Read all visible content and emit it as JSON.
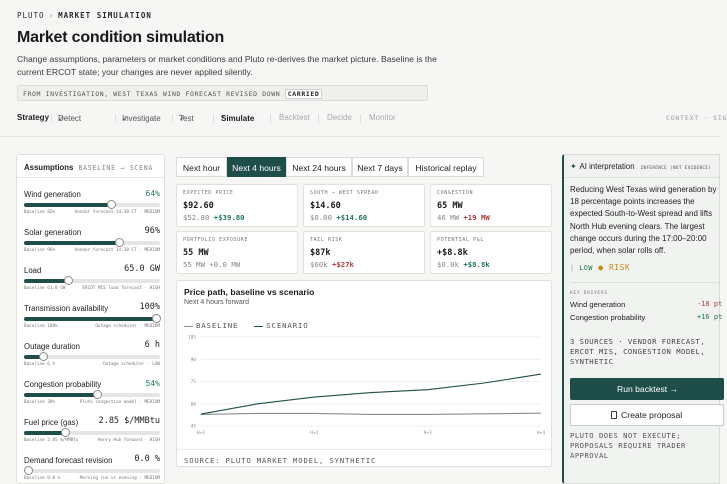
{
  "breadcrumb": {
    "root": "PLUTO",
    "sep": "›",
    "current": "MARKET SIMULATION"
  },
  "page_title": "Market condition simulation",
  "description": "Change assumptions, parameters or market conditions and Pluto re-derives the market picture. Baseline is the current ERCOT state; your changes are never applied silently.",
  "from_bar": {
    "text": "FROM INVESTIGATION, WEST TEXAS WIND FORECAST REVISED DOWN",
    "badge": "CARRIED"
  },
  "steps": {
    "title": "Strategy",
    "items": [
      {
        "label": "Detect",
        "state": "done",
        "mark": "✓"
      },
      {
        "label": "Investigate",
        "state": "done",
        "mark": "✓"
      },
      {
        "label": "Test",
        "state": "done",
        "mark": "✓"
      },
      {
        "label": "Simulate",
        "state": "current",
        "mark": "●"
      },
      {
        "label": "Backtest",
        "state": "future"
      },
      {
        "label": "Decide",
        "state": "future"
      },
      {
        "label": "Monitor",
        "state": "future"
      }
    ],
    "right": "CONTEXT · SIG"
  },
  "assumptions": {
    "title": "Assumptions",
    "subtitle": "BASELINE → SCENA",
    "params": [
      {
        "label": "Wind generation",
        "value": "64%",
        "green": true,
        "fill": 0.64,
        "meta_left": "Baseline 82%",
        "meta_right": "Vendor forecast 14:30 CT · MEDIUM"
      },
      {
        "label": "Solar generation",
        "value": "96%",
        "green": false,
        "fill": 0.7,
        "meta_left": "Baseline 96%",
        "meta_right": "Vendor forecast 14:30 CT · MEDIUM"
      },
      {
        "label": "Load",
        "value": "65.0 GW",
        "green": false,
        "fill": 0.32,
        "meta_left": "Baseline 61.0 GW",
        "meta_right": "ERCOT MIS load forecast · HIGH"
      },
      {
        "label": "Transmission availability",
        "value": "100%",
        "green": false,
        "fill": 1.0,
        "meta_left": "Baseline 100%",
        "meta_right": "Outage scheduler · MEDIUM"
      },
      {
        "label": "Outage duration",
        "value": "6 h",
        "green": false,
        "fill": 0.14,
        "meta_left": "Baseline 6 h",
        "meta_right": "Outage scheduler · LOW"
      },
      {
        "label": "Congestion probability",
        "value": "54%",
        "green": true,
        "fill": 0.54,
        "meta_left": "Baseline 38%",
        "meta_right": "Pluto congestion model · MEDIUM"
      },
      {
        "label": "Fuel price (gas)",
        "value": "2.85 $/MMBtu",
        "green": false,
        "fill": 0.3,
        "meta_left": "Baseline 2.85 $/MMBtu",
        "meta_right": "Henry Hub forward · HIGH"
      },
      {
        "label": "Demand forecast revision",
        "value": "0.0 %",
        "green": false,
        "fill": 0.0,
        "meta_left": "Baseline 0.0 %",
        "meta_right": "Morning run vs evening · MEDIUM"
      }
    ]
  },
  "horizon_tabs": [
    {
      "label": "Next hour",
      "active": false
    },
    {
      "label": "Next 4 hours",
      "active": true
    },
    {
      "label": "Next 24 hours",
      "active": false
    },
    {
      "label": "Next 7 days",
      "active": false
    },
    {
      "label": "Historical replay",
      "active": false
    }
  ],
  "metrics": [
    {
      "title": "EXPECTED PRICE",
      "value": "$92.60",
      "base": "$52.80",
      "delta": "+$39.80",
      "dir": "pos"
    },
    {
      "title": "SOUTH → WEST SPREAD",
      "value": "$14.60",
      "base": "$0.00",
      "delta": "+$14.60",
      "dir": "pos"
    },
    {
      "title": "CONGESTION",
      "value": "65 MW",
      "base": "46 MW",
      "delta": "+19 MW",
      "dir": "neg"
    },
    {
      "title": "PORTFOLIO EXPOSURE",
      "value": "55 MW",
      "base": "55 MW",
      "delta": "+0.0 MW",
      "dir": "none"
    },
    {
      "title": "TAIL RISK",
      "value": "$87k",
      "base": "$60k",
      "delta": "+$27k",
      "dir": "neg"
    },
    {
      "title": "POTENTIAL P&L",
      "value": "+$8.8k",
      "base": "$0.0k",
      "delta": "+$8.8k",
      "dir": "pos"
    }
  ],
  "chart_panel": {
    "title": "Price path, baseline vs scenario",
    "subtitle": "Next 4 hours forward",
    "legend_baseline": "BASELINE",
    "legend_scenario": "SCENARIO",
    "source": "SOURCE: PLUTO MARKET MODEL, SYNTHETIC"
  },
  "chart_data": {
    "type": "line",
    "x": [
      "H+1",
      "H+2",
      "H+3",
      "H+4"
    ],
    "xticks": [
      "H+1",
      "H+2",
      "H+3",
      "H+4"
    ],
    "yticks": [
      45,
      60,
      75,
      90,
      105
    ],
    "ylim": [
      45,
      105
    ],
    "series": [
      {
        "name": "BASELINE",
        "color": "#8a8f8c",
        "points": [
          [
            0,
            52.8
          ],
          [
            0.5,
            53.5
          ],
          [
            1,
            53.5
          ],
          [
            1.5,
            52.8
          ],
          [
            2,
            52.8
          ],
          [
            2.5,
            53.2
          ],
          [
            3,
            53.6
          ]
        ]
      },
      {
        "name": "SCENARIO",
        "color": "#1f4e4a",
        "points": [
          [
            0,
            53.0
          ],
          [
            0.5,
            60.0
          ],
          [
            1,
            64.5
          ],
          [
            1.5,
            67.5
          ],
          [
            2,
            69.5
          ],
          [
            2.5,
            74.0
          ],
          [
            3,
            80.0
          ]
        ]
      }
    ]
  },
  "ai": {
    "title": "AI interpretation",
    "unverified": "INFERENCE (NOT EVIDENCE)",
    "body": "Reducing West Texas wind generation by 18 percentage points increases the expected South-to-West spread and lifts North Hub evening clears. The largest change occurs during the 17:00–20:00 period, when solar rolls off.",
    "confidence_low": "LOW",
    "confidence_risk": "RISK",
    "key_drivers_label": "KEY DRIVERS",
    "drivers": [
      {
        "label": "Wind generation",
        "value": "-18 pt",
        "color": "#b23b3b"
      },
      {
        "label": "Congestion probability",
        "value": "+16 pt",
        "color": "#1f7a55"
      }
    ],
    "sources": "3 SOURCES · VENDOR FORECAST, ERCOT MIS, CONGESTION MODEL, SYNTHETIC",
    "run_backtest": "Run backtest →",
    "create_proposal": "Create proposal",
    "footer": "PLUTO DOES NOT EXECUTE; PROPOSALS REQUIRE TRADER APPROVAL"
  }
}
